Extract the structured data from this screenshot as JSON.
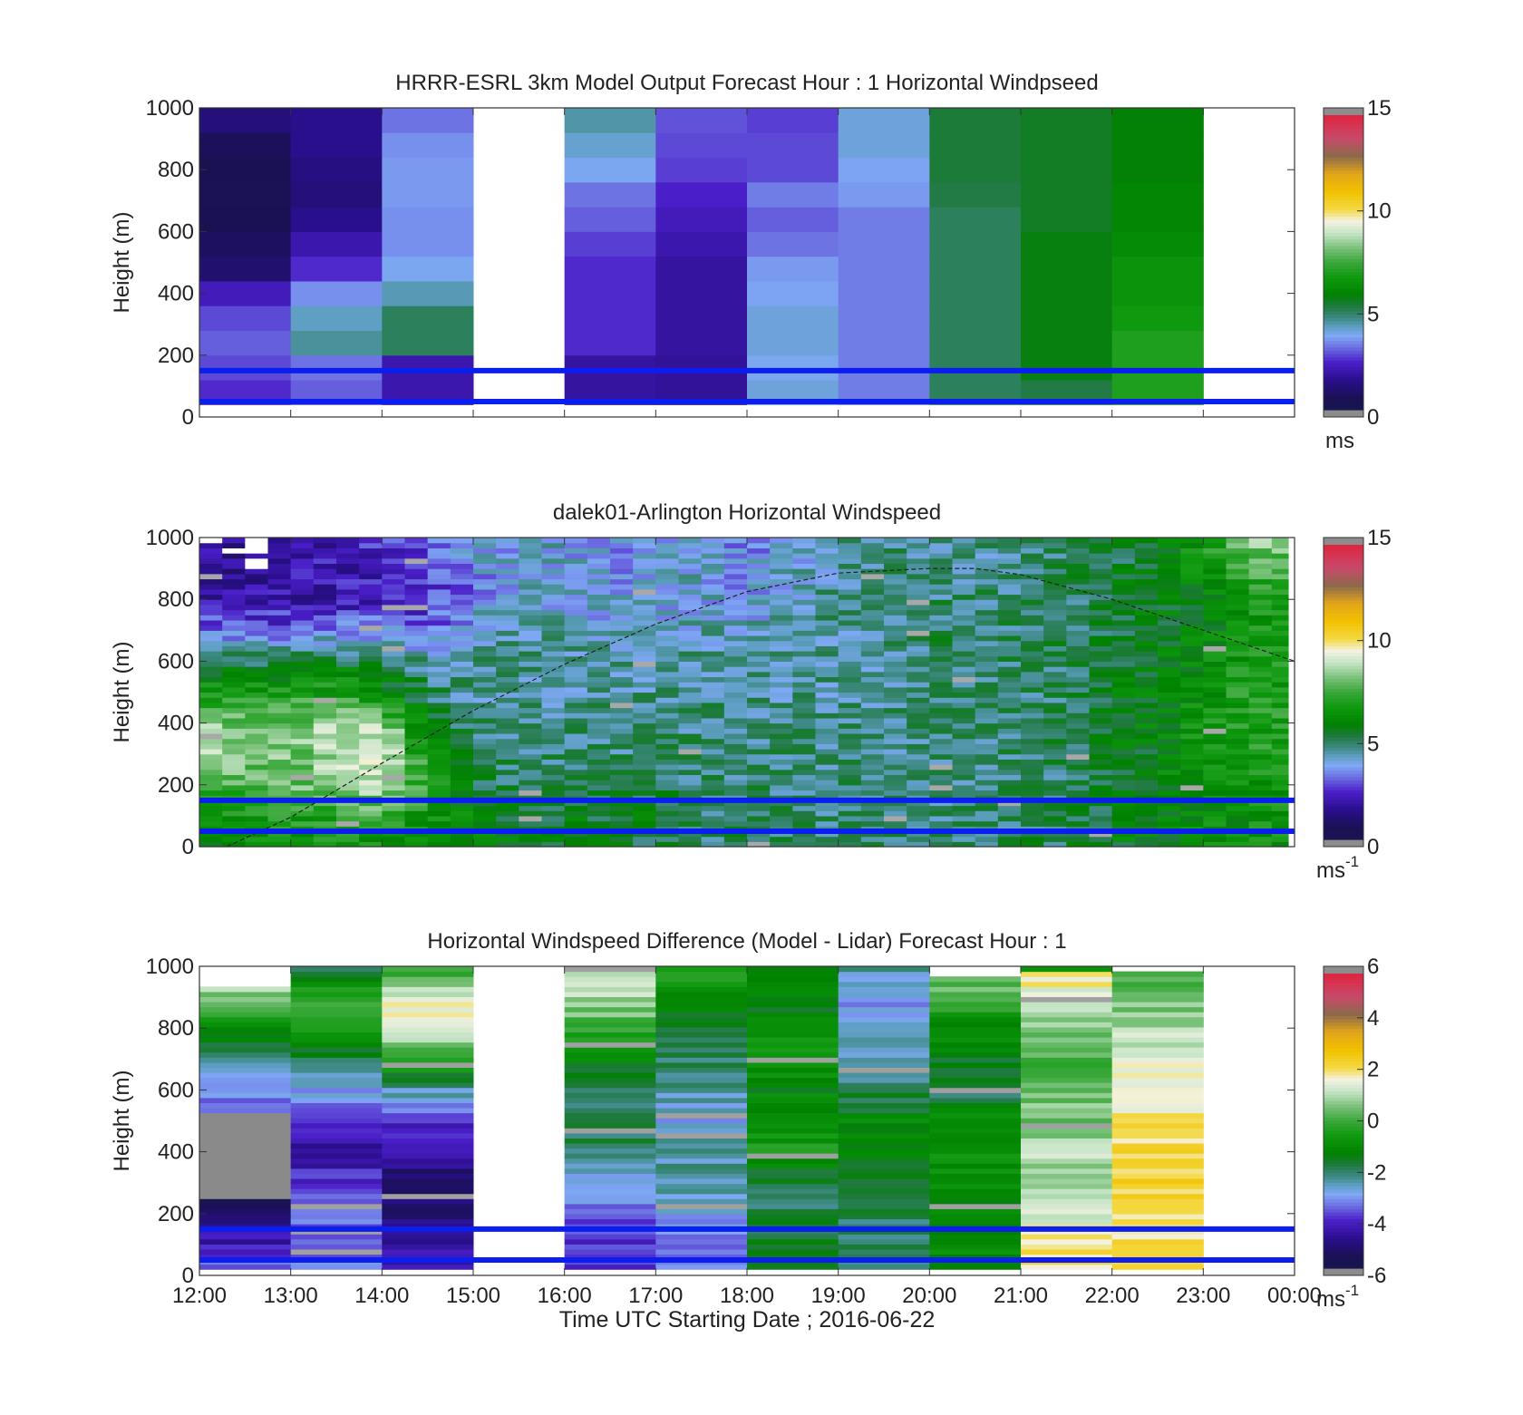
{
  "figure": {
    "xlabel": "Time UTC  Starting Date ; 2016-06-22",
    "x_ticks": [
      "12:00",
      "13:00",
      "14:00",
      "15:00",
      "16:00",
      "17:00",
      "18:00",
      "19:00",
      "20:00",
      "21:00",
      "22:00",
      "23:00",
      "00:00"
    ]
  },
  "chart_data": [
    {
      "type": "heatmap",
      "title": "HRRR-ESRL 3km Model Output   Forecast Hour : 1 Horizontal Windpseed",
      "ylabel": "Height (m)",
      "ylim": [
        0,
        1000
      ],
      "y_ticks": [
        "0",
        "200",
        "400",
        "600",
        "800",
        "1000"
      ],
      "x_hours": [
        12,
        13,
        14,
        15,
        16,
        17,
        18,
        19,
        20,
        21,
        22,
        23,
        24
      ],
      "colorbar": {
        "range": [
          0,
          15
        ],
        "ticks": [
          "0",
          "5",
          "10",
          "15"
        ],
        "unit": "ms",
        "unit_sup": ""
      },
      "reference_lines_m": [
        50,
        150
      ],
      "columns": [
        {
          "hour": 12,
          "speeds": [
            2.5,
            2.8,
            3.0,
            2.8,
            2.2,
            1.0,
            0.8,
            0.5,
            0.4,
            0.5,
            0.7,
            1.2
          ]
        },
        {
          "hour": 13,
          "speeds": [
            3.0,
            3.2,
            4.5,
            4.2,
            3.5,
            2.5,
            2.0,
            1.5,
            1.2,
            1.3,
            1.5,
            1.5
          ]
        },
        {
          "hour": 14,
          "speeds": [
            2.0,
            2.0,
            5.0,
            5.0,
            4.3,
            3.8,
            3.5,
            3.5,
            3.6,
            3.6,
            3.5,
            3.2
          ]
        },
        {
          "hour": 15,
          "speeds": [
            null,
            null,
            null,
            null,
            null,
            null,
            null,
            null,
            null,
            null,
            null,
            null
          ]
        },
        {
          "hour": 16,
          "speeds": [
            1.8,
            1.8,
            2.5,
            2.5,
            2.5,
            2.5,
            2.7,
            3.0,
            3.2,
            3.8,
            4.1,
            4.4
          ]
        },
        {
          "hour": 17,
          "speeds": [
            1.7,
            1.7,
            1.8,
            1.8,
            1.8,
            1.8,
            2.0,
            2.2,
            2.4,
            2.7,
            2.8,
            2.9
          ]
        },
        {
          "hour": 18,
          "speeds": [
            4.0,
            3.8,
            4.0,
            4.0,
            3.7,
            3.6,
            3.2,
            3.0,
            3.3,
            2.8,
            2.8,
            2.7
          ]
        },
        {
          "hour": 19,
          "speeds": [
            3.3,
            3.3,
            3.3,
            3.3,
            3.3,
            3.3,
            3.3,
            3.3,
            3.6,
            3.7,
            4.0,
            4.0
          ]
        },
        {
          "hour": 20,
          "speeds": [
            5.0,
            5.0,
            5.0,
            5.0,
            5.0,
            5.0,
            5.0,
            5.0,
            5.2,
            5.3,
            5.3,
            5.3
          ]
        },
        {
          "hour": 21,
          "speeds": [
            5.2,
            5.7,
            5.7,
            5.7,
            5.7,
            5.7,
            5.7,
            5.5,
            5.5,
            5.5,
            5.5,
            5.5
          ]
        },
        {
          "hour": 22,
          "speeds": [
            7.0,
            7.0,
            7.0,
            6.7,
            6.5,
            6.5,
            6.2,
            6.0,
            6.0,
            5.8,
            5.8,
            5.8
          ]
        },
        {
          "hour": 23,
          "speeds": [
            null,
            null,
            null,
            null,
            null,
            null,
            null,
            null,
            null,
            null,
            null,
            null
          ]
        }
      ]
    },
    {
      "type": "heatmap",
      "title": "dalek01-Arlington  Horizontal Windspeed",
      "ylabel": "Height (m)",
      "ylim": [
        0,
        1000
      ],
      "y_ticks": [
        "0",
        "200",
        "400",
        "600",
        "800",
        "1000"
      ],
      "x_hours": [
        12,
        13,
        14,
        15,
        16,
        17,
        18,
        19,
        20,
        21,
        22,
        23,
        24
      ],
      "colorbar": {
        "range": [
          0,
          15
        ],
        "ticks": [
          "0",
          "5",
          "10",
          "15"
        ],
        "unit": "ms",
        "unit_sup": "-1"
      },
      "reference_lines_m": [
        50,
        150
      ],
      "time_step_min": 15,
      "data_end_hour": 23.93,
      "anchors_hours": [
        12,
        12.5,
        13,
        13.5,
        14,
        14.5,
        15,
        15.5,
        16,
        16.5,
        17,
        17.5,
        18,
        18.5,
        19,
        19.5,
        20,
        20.5,
        21,
        21.5,
        22,
        22.5,
        23,
        23.5,
        24
      ],
      "anchor_heights_m": [
        0,
        100,
        200,
        300,
        400,
        500,
        600,
        700,
        800,
        900,
        1000
      ],
      "anchor_speeds": [
        [
          6.0,
          6.5,
          8.0,
          8.5,
          8.5,
          7.0,
          5.0,
          3.0,
          2.0,
          1.5,
          1.5
        ],
        [
          6.0,
          6.5,
          7.5,
          8.5,
          8.0,
          7.0,
          5.0,
          3.0,
          2.0,
          1.8,
          1.8
        ],
        [
          6.5,
          7.0,
          8.0,
          8.0,
          8.0,
          7.0,
          5.5,
          3.0,
          2.0,
          1.8,
          2.0
        ],
        [
          6.5,
          7.0,
          8.5,
          9.0,
          9.0,
          7.0,
          5.5,
          3.5,
          2.0,
          2.0,
          2.2
        ],
        [
          6.5,
          7.5,
          9.0,
          9.5,
          8.5,
          6.5,
          5.0,
          3.5,
          2.3,
          2.2,
          2.5
        ],
        [
          6.0,
          6.5,
          7.0,
          6.5,
          5.5,
          5.0,
          4.5,
          3.0,
          2.5,
          2.5,
          3.0
        ],
        [
          6.0,
          6.0,
          5.5,
          5.0,
          4.8,
          4.5,
          4.5,
          4.0,
          3.5,
          3.5,
          3.8
        ],
        [
          6.0,
          5.5,
          5.0,
          4.8,
          4.6,
          4.5,
          4.5,
          4.5,
          4.0,
          4.0,
          4.0
        ],
        [
          5.5,
          5.5,
          5.0,
          4.8,
          4.7,
          4.5,
          4.5,
          4.3,
          4.0,
          4.0,
          4.0
        ],
        [
          5.5,
          5.5,
          5.0,
          4.7,
          4.7,
          4.5,
          4.3,
          4.0,
          3.8,
          3.5,
          3.5
        ],
        [
          5.2,
          5.5,
          5.2,
          4.8,
          4.7,
          4.5,
          4.5,
          4.0,
          3.8,
          3.8,
          3.8
        ],
        [
          5.0,
          5.0,
          4.8,
          4.8,
          4.7,
          4.7,
          4.5,
          4.2,
          4.0,
          4.0,
          3.8
        ],
        [
          5.0,
          5.0,
          4.8,
          4.7,
          4.7,
          4.5,
          4.3,
          4.0,
          3.8,
          3.5,
          3.5
        ],
        [
          5.0,
          4.8,
          4.8,
          4.7,
          4.6,
          4.5,
          4.5,
          4.5,
          4.3,
          4.0,
          4.0
        ],
        [
          5.0,
          4.8,
          4.8,
          4.7,
          4.6,
          4.5,
          4.5,
          4.5,
          4.5,
          4.5,
          4.7
        ],
        [
          5.0,
          4.8,
          4.7,
          4.7,
          4.7,
          4.6,
          4.6,
          4.8,
          4.8,
          4.8,
          4.8
        ],
        [
          5.0,
          4.8,
          4.7,
          4.7,
          4.7,
          4.7,
          4.7,
          5.0,
          4.8,
          4.5,
          4.5
        ],
        [
          5.0,
          4.8,
          4.8,
          4.7,
          4.7,
          4.7,
          4.8,
          5.0,
          4.8,
          4.5,
          4.5
        ],
        [
          5.0,
          4.8,
          4.8,
          4.8,
          4.8,
          4.8,
          4.8,
          4.8,
          4.8,
          4.8,
          4.8
        ],
        [
          5.2,
          5.0,
          5.0,
          5.0,
          5.0,
          5.0,
          5.0,
          5.0,
          5.0,
          5.0,
          5.0
        ],
        [
          5.7,
          5.5,
          5.5,
          5.5,
          5.5,
          5.5,
          5.5,
          5.3,
          5.3,
          5.3,
          5.2
        ],
        [
          6.0,
          5.8,
          5.8,
          5.8,
          6.0,
          6.0,
          5.8,
          5.7,
          5.5,
          5.5,
          5.5
        ],
        [
          6.2,
          6.2,
          6.2,
          6.5,
          6.5,
          6.3,
          6.0,
          6.0,
          6.0,
          6.5,
          7.0
        ],
        [
          6.5,
          6.5,
          6.5,
          6.8,
          7.0,
          7.0,
          6.8,
          6.5,
          7.0,
          7.5,
          8.5
        ],
        [
          6.5,
          6.5,
          6.8,
          7.0,
          7.0,
          7.0,
          6.8,
          6.7,
          7.0,
          7.5,
          8.5
        ]
      ],
      "boundary_layer_curve": {
        "hours": [
          12.3,
          13,
          14,
          15,
          16,
          17,
          18,
          19,
          20,
          20.5,
          21,
          22,
          23,
          24
        ],
        "heights_m": [
          0,
          95,
          270,
          440,
          590,
          720,
          825,
          885,
          900,
          900,
          880,
          800,
          700,
          600
        ]
      }
    },
    {
      "type": "heatmap",
      "title": "Horizontal Windspeed Difference (Model - Lidar) Forecast Hour : 1",
      "ylabel": "Height (m)",
      "ylim": [
        0,
        1000
      ],
      "y_ticks": [
        "0",
        "200",
        "400",
        "600",
        "800",
        "1000"
      ],
      "x_hours": [
        12,
        13,
        14,
        15,
        16,
        17,
        18,
        19,
        20,
        21,
        22,
        23,
        24
      ],
      "colorbar": {
        "range": [
          -6,
          6
        ],
        "ticks": [
          "-6",
          "-4",
          "-2",
          "0",
          "2",
          "4",
          "6"
        ],
        "unit": "ms",
        "unit_sup": "-1"
      },
      "reference_lines_m": [
        50,
        150
      ],
      "bins_per_column": 60,
      "columns": [
        {
          "hour": 12,
          "top_m": 940,
          "anchors_m": [
            0,
            60,
            120,
            200,
            240,
            260,
            420,
            500,
            540,
            600,
            700,
            800,
            900,
            940
          ],
          "anchors_diff": [
            -3,
            -4,
            -4.5,
            -5,
            -5.5,
            null,
            null,
            null,
            -3.5,
            -3,
            -2.5,
            -1,
            0.5,
            1
          ]
        },
        {
          "hour": 13,
          "top_m": 1000,
          "anchors_m": [
            0,
            100,
            150,
            200,
            300,
            400,
            500,
            600,
            700,
            800,
            900,
            1000
          ],
          "anchors_diff": [
            -3.5,
            -3.5,
            -3.5,
            -3,
            -4,
            -4.5,
            -4,
            -3,
            -2,
            0,
            0,
            -2
          ]
        },
        {
          "hour": 14,
          "top_m": 1000,
          "anchors_m": [
            0,
            100,
            200,
            300,
            400,
            500,
            600,
            700,
            800,
            900,
            1000
          ],
          "anchors_diff": [
            -4.5,
            -4.5,
            -5,
            -5.5,
            -4.5,
            -4,
            -2.5,
            0,
            1.5,
            1.5,
            -0.5
          ]
        },
        {
          "hour": 15,
          "top_m": 0,
          "anchors_m": [
            0
          ],
          "anchors_diff": [
            null
          ]
        },
        {
          "hour": 16,
          "top_m": 1000,
          "anchors_m": [
            0,
            100,
            200,
            300,
            400,
            500,
            600,
            700,
            800,
            900,
            1000
          ],
          "anchors_diff": [
            -4,
            -4,
            -3.5,
            -3,
            -2,
            -2,
            -2.2,
            -1,
            0,
            1,
            1.5
          ]
        },
        {
          "hour": 17,
          "top_m": 1000,
          "anchors_m": [
            0,
            100,
            200,
            300,
            400,
            500,
            600,
            700,
            800,
            900,
            1000
          ],
          "anchors_diff": [
            -3.5,
            -3.5,
            -3,
            -2.5,
            -2.5,
            -3,
            -2.5,
            -2,
            -1.5,
            -1,
            -0.5
          ]
        },
        {
          "hour": 18,
          "top_m": 1000,
          "anchors_m": [
            0,
            100,
            200,
            300,
            400,
            500,
            600,
            700,
            800,
            900,
            1000
          ],
          "anchors_diff": [
            -1,
            -1.5,
            -2,
            -2,
            -0.5,
            -1,
            -1.2,
            -0.5,
            -1,
            -1.5,
            -1
          ]
        },
        {
          "hour": 19,
          "top_m": 1000,
          "anchors_m": [
            0,
            100,
            200,
            300,
            400,
            500,
            600,
            700,
            800,
            900,
            1000
          ],
          "anchors_diff": [
            -2.5,
            -2,
            -2,
            -2,
            -1.2,
            -1.2,
            -2,
            -2.5,
            -3,
            -3,
            -2.5
          ]
        },
        {
          "hour": 20,
          "top_m": 960,
          "anchors_m": [
            0,
            100,
            200,
            300,
            400,
            500,
            600,
            700,
            800,
            900,
            960
          ],
          "anchors_diff": [
            -1,
            -1,
            -1.2,
            -1,
            -0.8,
            -1,
            -2,
            -1.5,
            -1,
            0,
            0.5
          ]
        },
        {
          "hour": 21,
          "top_m": 1000,
          "anchors_m": [
            0,
            100,
            200,
            300,
            400,
            500,
            600,
            700,
            800,
            900,
            980,
            1000
          ],
          "anchors_diff": [
            2,
            2,
            1.5,
            1,
            1,
            0.5,
            0.5,
            0,
            0.5,
            1.5,
            2,
            -2.5
          ]
        },
        {
          "hour": 22,
          "top_m": 990,
          "anchors_m": [
            0,
            100,
            200,
            300,
            400,
            500,
            600,
            700,
            800,
            900,
            990
          ],
          "anchors_diff": [
            2,
            2,
            2,
            2.5,
            2.2,
            2,
            1.8,
            1.5,
            1,
            0.5,
            0.2
          ]
        },
        {
          "hour": 23,
          "top_m": 0,
          "anchors_m": [
            0
          ],
          "anchors_diff": [
            null
          ]
        }
      ]
    }
  ]
}
